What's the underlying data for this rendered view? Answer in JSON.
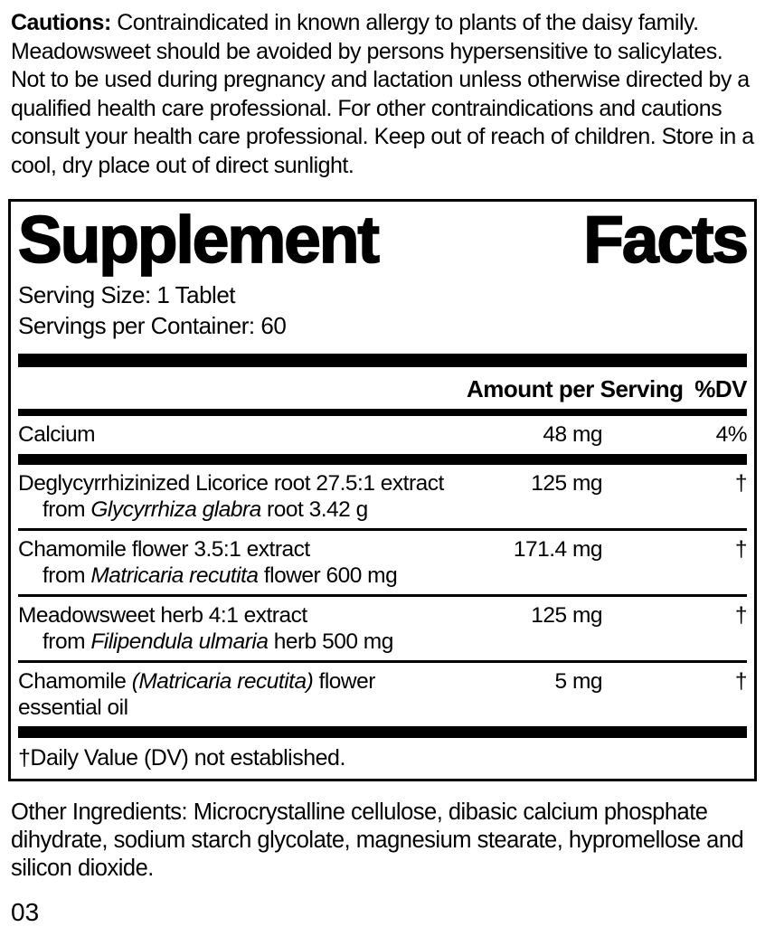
{
  "cautions": {
    "label": "Cautions:",
    "text": " Contraindicated in known allergy to plants of the daisy family. Meadowsweet should be avoided by persons hypersensitive to salicylates. Not to be used during pregnancy and lactation unless otherwise directed by a qualified health care professional. For other contraindications and cautions consult your health care professional. Keep out of reach of children. Store in a cool, dry place out of direct sunlight."
  },
  "panel": {
    "title_word1": "Supplement",
    "title_word2": "Facts",
    "serving_size": "Serving Size: 1 Tablet",
    "servings_per_container": "Servings per Container: 60",
    "header": {
      "amount": "Amount per Serving",
      "dv": "%DV"
    },
    "rows": [
      {
        "name": "Calcium",
        "amount": "48 mg",
        "dv": "4%"
      },
      {
        "line1_pre": "Deglycyrrhizinized Licorice root 27.5:1 extract",
        "line1_italic": "",
        "line1_post": "",
        "line2_pre": "from ",
        "line2_italic": "Glycyrrhiza glabra",
        "line2_post": " root 3.42 g",
        "amount": "125 mg",
        "dv": "†"
      },
      {
        "line1_pre": "Chamomile flower 3.5:1 extract",
        "line1_italic": "",
        "line1_post": "",
        "line2_pre": "from ",
        "line2_italic": "Matricaria recutita",
        "line2_post": " flower 600 mg",
        "amount": "171.4 mg",
        "dv": "†"
      },
      {
        "line1_pre": "Meadowsweet herb 4:1 extract",
        "line1_italic": "",
        "line1_post": "",
        "line2_pre": "from ",
        "line2_italic": "Filipendula ulmaria",
        "line2_post": " herb 500 mg",
        "amount": "125 mg",
        "dv": "†"
      },
      {
        "line1_pre": "Chamomile ",
        "line1_italic": "(Matricaria recutita)",
        "line1_post": " flower",
        "line2_pre": "essential oil",
        "line2_italic": "",
        "line2_post": "",
        "amount": "5 mg",
        "dv": "†"
      }
    ],
    "footnote": "†Daily Value (DV) not established."
  },
  "other_ingredients": "Other Ingredients: Microcrystalline cellulose, dibasic calcium phosphate dihydrate, sodium starch glycolate, magnesium stearate, hypromellose and silicon dioxide.",
  "footer_code": "03",
  "colors": {
    "ink": "#000000",
    "background": "#ffffff"
  }
}
